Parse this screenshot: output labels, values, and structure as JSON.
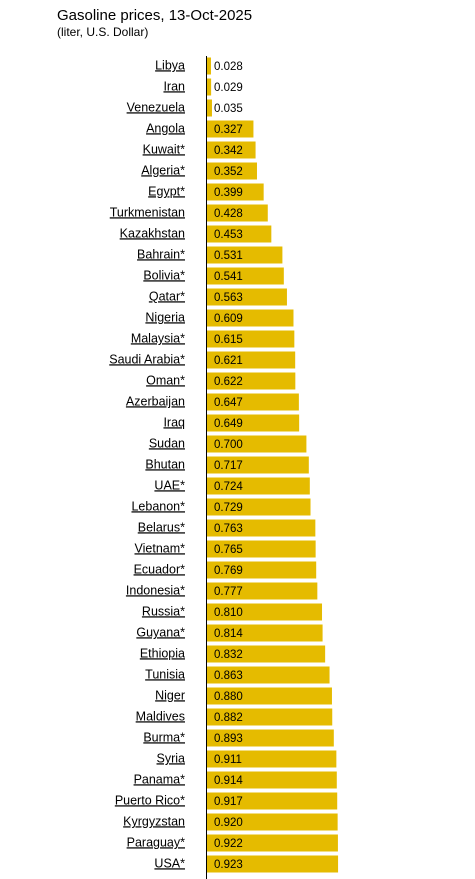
{
  "chart_data": {
    "type": "bar",
    "orientation": "horizontal",
    "title": "Gasoline prices, 13-Oct-2025",
    "subtitle": "(liter, U.S. Dollar)",
    "color": "#e5bb00",
    "categories": [
      "Libya",
      "Iran",
      "Venezuela",
      "Angola",
      "Kuwait*",
      "Algeria*",
      "Egypt*",
      "Turkmenistan",
      "Kazakhstan",
      "Bahrain*",
      "Bolivia*",
      "Qatar*",
      "Nigeria",
      "Malaysia*",
      "Saudi Arabia*",
      "Oman*",
      "Azerbaijan",
      "Iraq",
      "Sudan",
      "Bhutan",
      "UAE*",
      "Lebanon*",
      "Belarus*",
      "Vietnam*",
      "Ecuador*",
      "Indonesia*",
      "Russia*",
      "Guyana*",
      "Ethiopia",
      "Tunisia",
      "Niger",
      "Maldives",
      "Burma*",
      "Syria",
      "Panama*",
      "Puerto Rico*",
      "Kyrgyzstan",
      "Paraguay*",
      "USA*"
    ],
    "values": [
      0.028,
      0.029,
      0.035,
      0.327,
      0.342,
      0.352,
      0.399,
      0.428,
      0.453,
      0.531,
      0.541,
      0.563,
      0.609,
      0.615,
      0.621,
      0.622,
      0.647,
      0.649,
      0.7,
      0.717,
      0.724,
      0.729,
      0.763,
      0.765,
      0.769,
      0.777,
      0.81,
      0.814,
      0.832,
      0.863,
      0.88,
      0.882,
      0.893,
      0.911,
      0.914,
      0.917,
      0.92,
      0.922,
      0.923
    ],
    "value_labels": [
      "0.028",
      "0.029",
      "0.035",
      "0.327",
      "0.342",
      "0.352",
      "0.399",
      "0.428",
      "0.453",
      "0.531",
      "0.541",
      "0.563",
      "0.609",
      "0.615",
      "0.621",
      "0.622",
      "0.647",
      "0.649",
      "0.700",
      "0.717",
      "0.724",
      "0.729",
      "0.763",
      "0.765",
      "0.769",
      "0.777",
      "0.810",
      "0.814",
      "0.832",
      "0.863",
      "0.880",
      "0.882",
      "0.893",
      "0.911",
      "0.914",
      "0.917",
      "0.920",
      "0.922",
      "0.923"
    ]
  }
}
